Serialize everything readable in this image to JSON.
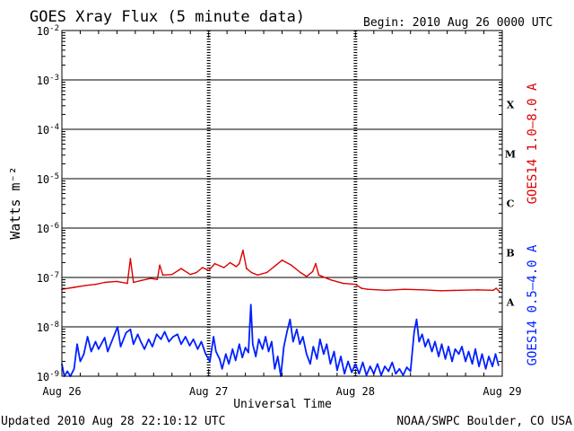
{
  "header": {
    "title": "GOES Xray Flux (5 minute data)",
    "begin": "Begin:  2010 Aug 26 0000 UTC"
  },
  "footer": {
    "updated": "Updated 2010 Aug 28 22:10:12 UTC",
    "credit": "NOAA/SWPC Boulder, CO USA"
  },
  "chart_data": {
    "type": "line",
    "title": "GOES Xray Flux (5 minute data)",
    "xlabel": "Universal Time",
    "ylabel": "Watts m⁻²",
    "y_scale": "log",
    "ylim": [
      1e-09,
      0.01
    ],
    "xlim": [
      0,
      72
    ],
    "x_unit": "hours since 2010 Aug 26 0000 UTC",
    "x_ticks": [
      {
        "x": 0,
        "label": "Aug 26"
      },
      {
        "x": 24,
        "label": "Aug 27"
      },
      {
        "x": 48,
        "label": "Aug 28"
      },
      {
        "x": 72,
        "label": "Aug 29"
      }
    ],
    "y_ticks": [
      {
        "exp": -2,
        "base": "10",
        "sup": "-2"
      },
      {
        "exp": -3,
        "base": "10",
        "sup": "-3"
      },
      {
        "exp": -4,
        "base": "10",
        "sup": "-4"
      },
      {
        "exp": -5,
        "base": "10",
        "sup": "-5"
      },
      {
        "exp": -6,
        "base": "10",
        "sup": "-6"
      },
      {
        "exp": -7,
        "base": "10",
        "sup": "-7"
      },
      {
        "exp": -8,
        "base": "10",
        "sup": "-8"
      },
      {
        "exp": -9,
        "base": "10",
        "sup": "-9"
      }
    ],
    "flare_classes": [
      {
        "label": "X",
        "exp": -3.5
      },
      {
        "label": "M",
        "exp": -4.5
      },
      {
        "label": "C",
        "exp": -5.5
      },
      {
        "label": "B",
        "exp": -6.5
      },
      {
        "label": "A",
        "exp": -7.5
      }
    ],
    "grid": true,
    "series": [
      {
        "name": "GOES14 1.0–8.0 A",
        "color": "#dd0000",
        "points": [
          [
            0,
            -7.24
          ],
          [
            2,
            -7.2
          ],
          [
            4,
            -7.16
          ],
          [
            5.5,
            -7.14
          ],
          [
            7,
            -7.1
          ],
          [
            9,
            -7.08
          ],
          [
            10.7,
            -7.12
          ],
          [
            11.2,
            -6.62
          ],
          [
            11.7,
            -7.1
          ],
          [
            13,
            -7.06
          ],
          [
            14.5,
            -7.02
          ],
          [
            15.6,
            -7.04
          ],
          [
            16,
            -6.75
          ],
          [
            16.5,
            -6.95
          ],
          [
            18,
            -6.94
          ],
          [
            19.5,
            -6.82
          ],
          [
            21,
            -6.94
          ],
          [
            22,
            -6.9
          ],
          [
            23,
            -6.8
          ],
          [
            24,
            -6.86
          ],
          [
            25,
            -6.72
          ],
          [
            26.5,
            -6.8
          ],
          [
            27.5,
            -6.7
          ],
          [
            28.5,
            -6.78
          ],
          [
            29,
            -6.72
          ],
          [
            29.6,
            -6.45
          ],
          [
            30.2,
            -6.82
          ],
          [
            31,
            -6.9
          ],
          [
            32,
            -6.95
          ],
          [
            33.5,
            -6.9
          ],
          [
            35,
            -6.75
          ],
          [
            36,
            -6.65
          ],
          [
            37.5,
            -6.75
          ],
          [
            39,
            -6.9
          ],
          [
            40,
            -6.98
          ],
          [
            41,
            -6.88
          ],
          [
            41.5,
            -6.72
          ],
          [
            42,
            -6.95
          ],
          [
            44,
            -7.05
          ],
          [
            46,
            -7.12
          ],
          [
            48,
            -7.14
          ],
          [
            49,
            -7.22
          ],
          [
            50,
            -7.24
          ],
          [
            53,
            -7.26
          ],
          [
            56,
            -7.24
          ],
          [
            59,
            -7.25
          ],
          [
            62,
            -7.27
          ],
          [
            65,
            -7.26
          ],
          [
            68,
            -7.25
          ],
          [
            70.5,
            -7.26
          ],
          [
            71,
            -7.22
          ],
          [
            71.5,
            -7.28
          ]
        ]
      },
      {
        "name": "GOES14 0.5–4.0 A",
        "color": "#0020ff",
        "points": [
          [
            0,
            -8.75
          ],
          [
            0.4,
            -9
          ],
          [
            0.9,
            -8.9
          ],
          [
            1.4,
            -9
          ],
          [
            2,
            -8.85
          ],
          [
            2.5,
            -8.35
          ],
          [
            3,
            -8.7
          ],
          [
            3.6,
            -8.55
          ],
          [
            4.2,
            -8.2
          ],
          [
            4.8,
            -8.5
          ],
          [
            5.5,
            -8.3
          ],
          [
            6,
            -8.45
          ],
          [
            7,
            -8.22
          ],
          [
            7.5,
            -8.5
          ],
          [
            8.2,
            -8.28
          ],
          [
            9.1,
            -8
          ],
          [
            9.6,
            -8.4
          ],
          [
            10.5,
            -8.12
          ],
          [
            11.2,
            -8.05
          ],
          [
            11.7,
            -8.35
          ],
          [
            12.4,
            -8.15
          ],
          [
            12.9,
            -8.3
          ],
          [
            13.5,
            -8.45
          ],
          [
            14.2,
            -8.25
          ],
          [
            14.8,
            -8.4
          ],
          [
            15.5,
            -8.15
          ],
          [
            16.2,
            -8.25
          ],
          [
            16.8,
            -8.1
          ],
          [
            17.5,
            -8.3
          ],
          [
            18.2,
            -8.2
          ],
          [
            18.9,
            -8.15
          ],
          [
            19.5,
            -8.35
          ],
          [
            20.2,
            -8.2
          ],
          [
            20.9,
            -8.38
          ],
          [
            21.5,
            -8.25
          ],
          [
            22.2,
            -8.45
          ],
          [
            22.8,
            -8.3
          ],
          [
            23.5,
            -8.55
          ],
          [
            24.2,
            -8.7
          ],
          [
            24.8,
            -8.2
          ],
          [
            25.2,
            -8.5
          ],
          [
            25.8,
            -8.65
          ],
          [
            26.2,
            -8.85
          ],
          [
            26.8,
            -8.55
          ],
          [
            27.3,
            -8.75
          ],
          [
            27.9,
            -8.45
          ],
          [
            28.4,
            -8.68
          ],
          [
            29,
            -8.35
          ],
          [
            29.5,
            -8.62
          ],
          [
            30,
            -8.42
          ],
          [
            30.5,
            -8.52
          ],
          [
            30.9,
            -7.55
          ],
          [
            31.2,
            -8.35
          ],
          [
            31.7,
            -8.6
          ],
          [
            32.2,
            -8.25
          ],
          [
            32.8,
            -8.45
          ],
          [
            33.3,
            -8.2
          ],
          [
            33.8,
            -8.5
          ],
          [
            34.3,
            -8.3
          ],
          [
            34.8,
            -8.85
          ],
          [
            35.3,
            -8.6
          ],
          [
            35.8,
            -9
          ],
          [
            36.3,
            -8.4
          ],
          [
            36.8,
            -8.1
          ],
          [
            37.3,
            -7.85
          ],
          [
            37.8,
            -8.3
          ],
          [
            38.4,
            -8.05
          ],
          [
            38.9,
            -8.35
          ],
          [
            39.4,
            -8.2
          ],
          [
            40,
            -8.55
          ],
          [
            40.6,
            -8.75
          ],
          [
            41.1,
            -8.4
          ],
          [
            41.7,
            -8.65
          ],
          [
            42.2,
            -8.25
          ],
          [
            42.8,
            -8.55
          ],
          [
            43.3,
            -8.35
          ],
          [
            43.9,
            -8.75
          ],
          [
            44.5,
            -8.5
          ],
          [
            45,
            -8.88
          ],
          [
            45.6,
            -8.6
          ],
          [
            46.2,
            -8.95
          ],
          [
            46.8,
            -8.7
          ],
          [
            47.4,
            -8.92
          ],
          [
            48,
            -8.75
          ],
          [
            48.6,
            -8.95
          ],
          [
            49.2,
            -8.72
          ],
          [
            49.8,
            -8.98
          ],
          [
            50.4,
            -8.8
          ],
          [
            51,
            -8.95
          ],
          [
            51.6,
            -8.75
          ],
          [
            52.2,
            -8.98
          ],
          [
            52.8,
            -8.8
          ],
          [
            53.4,
            -8.9
          ],
          [
            54,
            -8.72
          ],
          [
            54.6,
            -8.95
          ],
          [
            55.2,
            -8.85
          ],
          [
            55.8,
            -8.98
          ],
          [
            56.4,
            -8.82
          ],
          [
            57,
            -8.9
          ],
          [
            57.6,
            -8.1
          ],
          [
            58,
            -7.85
          ],
          [
            58.4,
            -8.3
          ],
          [
            58.9,
            -8.15
          ],
          [
            59.4,
            -8.4
          ],
          [
            59.9,
            -8.25
          ],
          [
            60.5,
            -8.5
          ],
          [
            61,
            -8.3
          ],
          [
            61.6,
            -8.6
          ],
          [
            62.1,
            -8.35
          ],
          [
            62.7,
            -8.65
          ],
          [
            63.2,
            -8.4
          ],
          [
            63.8,
            -8.7
          ],
          [
            64.3,
            -8.45
          ],
          [
            64.9,
            -8.55
          ],
          [
            65.4,
            -8.4
          ],
          [
            66,
            -8.7
          ],
          [
            66.5,
            -8.5
          ],
          [
            67.1,
            -8.75
          ],
          [
            67.6,
            -8.45
          ],
          [
            68.2,
            -8.8
          ],
          [
            68.7,
            -8.55
          ],
          [
            69.3,
            -8.85
          ],
          [
            69.8,
            -8.6
          ],
          [
            70.4,
            -8.8
          ],
          [
            70.9,
            -8.55
          ],
          [
            71.4,
            -8.78
          ]
        ]
      }
    ]
  }
}
